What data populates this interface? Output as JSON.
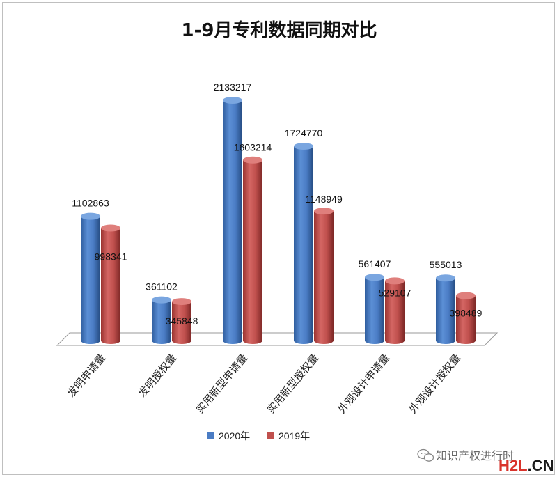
{
  "chart_data": {
    "type": "bar",
    "title": "1-9月专利数据同期对比",
    "categories": [
      "发明申请量",
      "发明授权量",
      "实用新型申请量",
      "实用新型授权量",
      "外观设计申请量",
      "外观设计授权量"
    ],
    "series": [
      {
        "name": "2020年",
        "color": "#4a7cc4",
        "values": [
          1102863,
          361102,
          2133217,
          1724770,
          561407,
          555013
        ]
      },
      {
        "name": "2019年",
        "color": "#c0504d",
        "values": [
          998341,
          345848,
          1603214,
          1148949,
          529107,
          398489
        ]
      }
    ],
    "bar_style": "3d-cylinder",
    "grid": false,
    "legend_position": "bottom"
  },
  "watermark": {
    "account": "知识产权进行时",
    "brand_prefix": "H2L",
    "brand_suffix": ".CN"
  }
}
